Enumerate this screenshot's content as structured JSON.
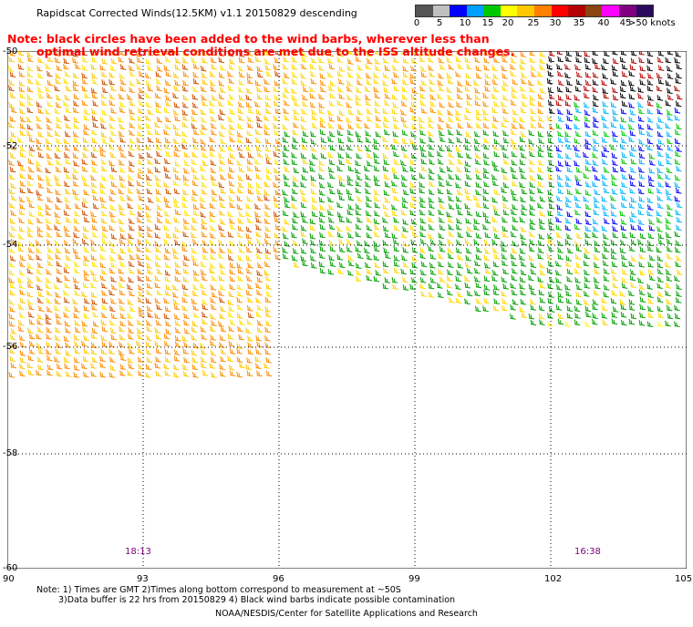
{
  "title": "Rapidscat Corrected Winds(12.5KM) v1.1 20150829 descending",
  "note": {
    "line1": "Note: black circles have been added to the wind barbs, wherever less than",
    "line2": "optimal wind retrieval conditions are met due to the ISS altitude changes."
  },
  "legend": {
    "colors": [
      "#555555",
      "#c0c0c0",
      "#0000ff",
      "#00a0ff",
      "#00c800",
      "#ffff00",
      "#ffc800",
      "#ff8000",
      "#ff0000",
      "#b40000",
      "#8b4513",
      "#ff00ff",
      "#800080",
      "#2a0a5e"
    ],
    "labels": [
      "0",
      "5",
      "10",
      "15",
      "20",
      "25",
      "30",
      "35",
      "40",
      "45",
      ">50 knots"
    ]
  },
  "map": {
    "lat_labels": [
      "-50",
      "-52",
      "-54",
      "-56",
      "-58",
      "-60"
    ],
    "lon_labels": [
      "90",
      "93",
      "96",
      "99",
      "102",
      "105"
    ],
    "times": [
      "18:13",
      "16:38"
    ]
  },
  "footnote": {
    "line1": "Note: 1) Times are GMT 2)Times along bottom correspond to measurement at ~50S",
    "line2": "3)Data buffer is 22 hrs from 20150829 4) Black wind barbs indicate possible contamination"
  },
  "credit": "NOAA/NESDIS/Center for Satellite Applications and Research"
}
